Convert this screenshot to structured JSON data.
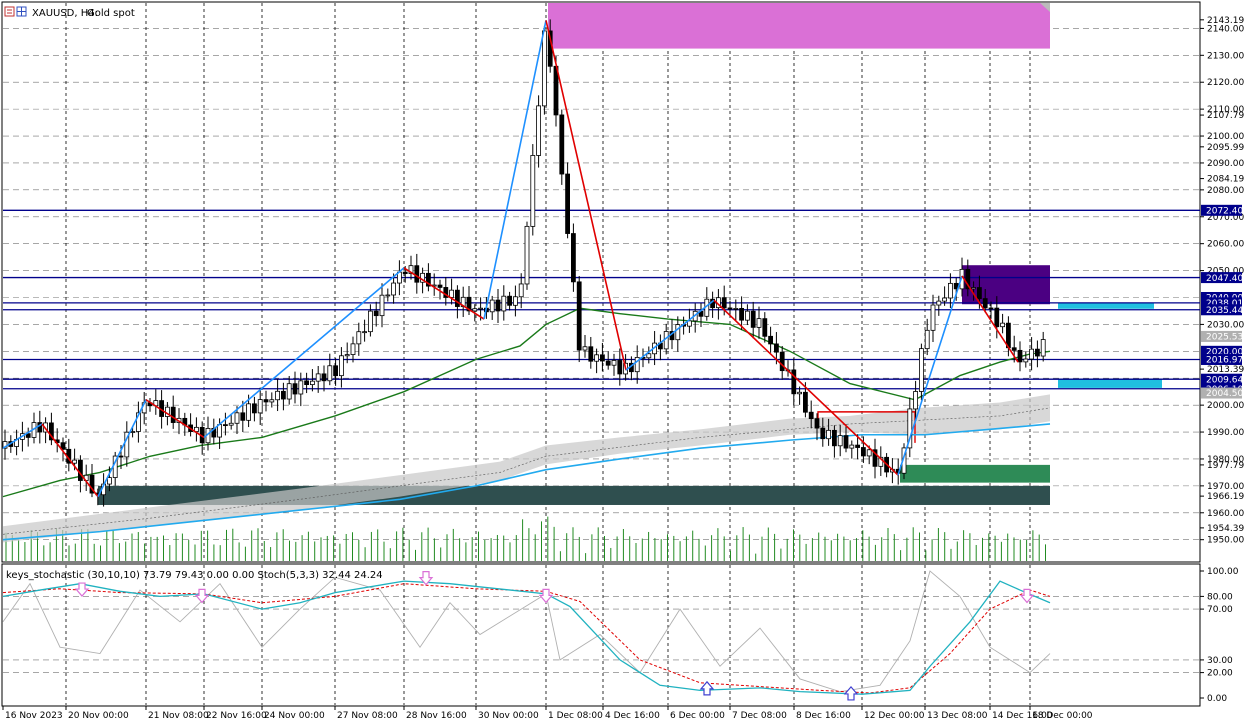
{
  "header": {
    "symbol": "XAUUSD, H4:",
    "description": "Gold spot"
  },
  "chart_data": {
    "type": "candlestick",
    "x_labels": [
      "16 Nov 2023",
      "20 Nov 00:00",
      "21 Nov 08:00",
      "22 Nov 16:00",
      "24 Nov 00:00",
      "27 Nov 08:00",
      "28 Nov 16:00",
      "30 Nov 00:00",
      "1 Dec 08:00",
      "4 Dec 16:00",
      "6 Dec 00:00",
      "7 Dec 08:00",
      "8 Dec 16:00",
      "12 Dec 00:00",
      "13 Dec 08:00",
      "14 Dec 16:00",
      "18 Dec 00:00"
    ],
    "y_ticks": [
      "2143.19",
      "2140.00",
      "2130.00",
      "2120.00",
      "2110.00",
      "2107.79",
      "2100.00",
      "2095.99",
      "2090.00",
      "2084.19",
      "2080.00",
      "2070.00",
      "2060.00",
      "2050.00",
      "2030.00",
      "2013.39",
      "2000.00",
      "1990.00",
      "1980.00",
      "1977.79",
      "1970.00",
      "1966.19",
      "1960.00",
      "1954.39",
      "1950.00"
    ],
    "price_tags": [
      {
        "label": "2072.40",
        "value": 2072.4
      },
      {
        "label": "2047.40",
        "value": 2047.4
      },
      {
        "label": "2040.00",
        "value": 2040.0
      },
      {
        "label": "2038.01",
        "value": 2038.01
      },
      {
        "label": "2035.44",
        "value": 2035.44
      },
      {
        "label": "2025.53",
        "value": 2025.53
      },
      {
        "label": "2020.00",
        "value": 2020.0
      },
      {
        "label": "2016.97",
        "value": 2016.97
      },
      {
        "label": "2009.64",
        "value": 2009.64
      },
      {
        "label": "2006.10",
        "value": 2006.1
      },
      {
        "label": "2004.50",
        "value": 2004.5
      }
    ],
    "horizontal_levels": [
      2072.4,
      2047.4,
      2038.01,
      2035.44,
      2016.97,
      2009.64,
      2006.1
    ],
    "indicator": {
      "label": "keys_stochastic (30,10,10) 73.79 79.43 0.00 0.00 Stoch(5,3,3) 32.44 24.24",
      "y_ticks": [
        "100.00",
        "80.00",
        "70.00",
        "30.00",
        "20.00",
        "0.00"
      ],
      "levels": [
        80,
        70,
        30,
        20
      ]
    },
    "colors": {
      "up_candle": "#ffffff",
      "down_candle": "#000000",
      "zigzag_up": "#1e90ff",
      "zigzag_down": "#e00000",
      "ma_green": "#1a7a1a",
      "ma_blue": "#22aaee",
      "level_line": "#00008b",
      "supply_zone": "#da70d6",
      "demand_zone_dark": "#2f4f4f",
      "demand_zone_green": "#2e8b57",
      "cyan_zone": "#20c0e0",
      "purple_zone": "#4b0082",
      "volume": "#228b22",
      "stoch_main": "#20b2c0",
      "stoch_signal": "#e00000",
      "stoch_fast": "#b0b0b0",
      "arrow_down": "#da70d6",
      "arrow_up": "#4040d0"
    }
  }
}
